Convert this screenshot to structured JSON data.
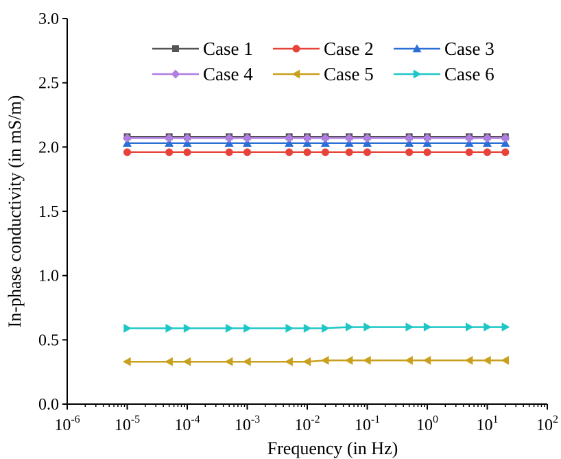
{
  "chart_data": {
    "type": "line",
    "xlabel": "Frequency (in Hz)",
    "ylabel": "In-phase conductivity (in mS/m)",
    "x_scale": "log",
    "xlim": [
      1e-06,
      100
    ],
    "ylim": [
      0,
      3
    ],
    "x_tick_labels": [
      {
        "base": "10",
        "exp": "-6",
        "value": 1e-06
      },
      {
        "base": "10",
        "exp": "-5",
        "value": 1e-05
      },
      {
        "base": "10",
        "exp": "-4",
        "value": 0.0001
      },
      {
        "base": "10",
        "exp": "-3",
        "value": 0.001
      },
      {
        "base": "10",
        "exp": "-2",
        "value": 0.01
      },
      {
        "base": "10",
        "exp": "-1",
        "value": 0.1
      },
      {
        "base": "10",
        "exp": "0",
        "value": 1
      },
      {
        "base": "10",
        "exp": "1",
        "value": 10
      },
      {
        "base": "10",
        "exp": "2",
        "value": 100
      }
    ],
    "y_tick_labels": [
      "0.0",
      "0.5",
      "1.0",
      "1.5",
      "2.0",
      "2.5",
      "3.0"
    ],
    "y_ticks": [
      0,
      0.5,
      1.0,
      1.5,
      2.0,
      2.5,
      3.0
    ],
    "grid": false,
    "legend_position": "top-right",
    "x": [
      1e-05,
      5e-05,
      0.0001,
      0.0005,
      0.001,
      0.005,
      0.01,
      0.02,
      0.05,
      0.1,
      0.5,
      1,
      5,
      10,
      20
    ],
    "series": [
      {
        "name": "Case 1",
        "color": "#555555",
        "marker": "square",
        "values": [
          2.08,
          2.08,
          2.08,
          2.08,
          2.08,
          2.08,
          2.08,
          2.08,
          2.08,
          2.08,
          2.08,
          2.08,
          2.08,
          2.08,
          2.08
        ]
      },
      {
        "name": "Case 2",
        "color": "#e8433a",
        "marker": "circle",
        "values": [
          1.96,
          1.96,
          1.96,
          1.96,
          1.96,
          1.96,
          1.96,
          1.96,
          1.96,
          1.96,
          1.96,
          1.96,
          1.96,
          1.96,
          1.96
        ]
      },
      {
        "name": "Case 3",
        "color": "#2a6fd6",
        "marker": "triangle-up",
        "values": [
          2.03,
          2.03,
          2.03,
          2.03,
          2.03,
          2.03,
          2.03,
          2.03,
          2.03,
          2.03,
          2.03,
          2.03,
          2.03,
          2.03,
          2.03
        ]
      },
      {
        "name": "Case 4",
        "color": "#b07de3",
        "marker": "diamond",
        "values": [
          2.07,
          2.07,
          2.07,
          2.07,
          2.07,
          2.07,
          2.07,
          2.07,
          2.07,
          2.07,
          2.07,
          2.07,
          2.07,
          2.07,
          2.07
        ]
      },
      {
        "name": "Case 5",
        "color": "#c9a01c",
        "marker": "triangle-left",
        "values": [
          0.33,
          0.33,
          0.33,
          0.33,
          0.33,
          0.33,
          0.33,
          0.34,
          0.34,
          0.34,
          0.34,
          0.34,
          0.34,
          0.34,
          0.34
        ]
      },
      {
        "name": "Case 6",
        "color": "#1ec6c6",
        "marker": "triangle-right",
        "values": [
          0.59,
          0.59,
          0.59,
          0.59,
          0.59,
          0.59,
          0.59,
          0.59,
          0.6,
          0.6,
          0.6,
          0.6,
          0.6,
          0.6,
          0.6
        ]
      }
    ]
  }
}
